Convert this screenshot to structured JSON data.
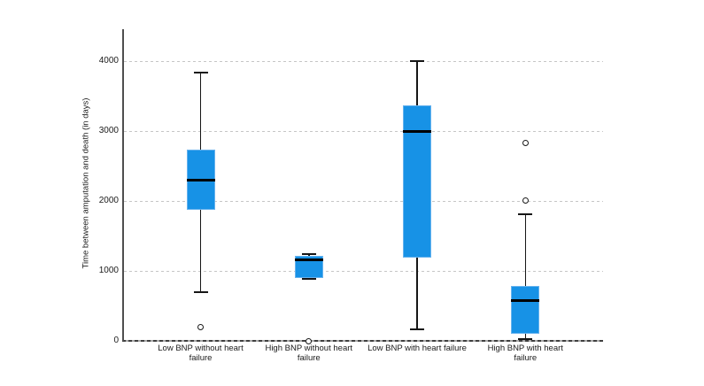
{
  "chart_data": {
    "type": "boxplot",
    "title": "",
    "xlabel": "",
    "ylabel": "Time between amputation and death (in days)",
    "y_ticks": [
      0,
      1000,
      2000,
      3000,
      4000
    ],
    "ylim": [
      0,
      4455
    ],
    "grid": "horizontal-dotted",
    "legend": "none",
    "categories": [
      "Low BNP without heart failure",
      "High BNP without heart failure",
      "Low BNP with heart failure",
      "High BNP with heart failure"
    ],
    "boxes": [
      {
        "category": "Low BNP without heart failure",
        "whisker_low": 700,
        "q1": 1870,
        "median": 2300,
        "q3": 2730,
        "whisker_high": 3840,
        "outliers": [
          200
        ]
      },
      {
        "category": "High BNP without heart failure",
        "whisker_low": 880,
        "q1": 900,
        "median": 1160,
        "q3": 1215,
        "whisker_high": 1235,
        "outliers": [
          0
        ]
      },
      {
        "category": "Low BNP with heart failure",
        "whisker_low": 160,
        "q1": 1190,
        "median": 3000,
        "q3": 3370,
        "whisker_high": 4000,
        "outliers": []
      },
      {
        "category": "High BNP with heart failure",
        "whisker_low": 30,
        "q1": 105,
        "median": 580,
        "q3": 790,
        "whisker_high": 1810,
        "outliers": [
          2010,
          2830
        ]
      }
    ],
    "colors": {
      "box_fill": "#1792e6",
      "box_border": "#66b2ee",
      "median": "#000000",
      "whisker": "#161616",
      "outlier_stroke": "#1a1a1a",
      "grid": "#c6c6c6",
      "axis": "#4f4f4f",
      "text": "#1a1a1a",
      "background": "#ffffff"
    }
  }
}
